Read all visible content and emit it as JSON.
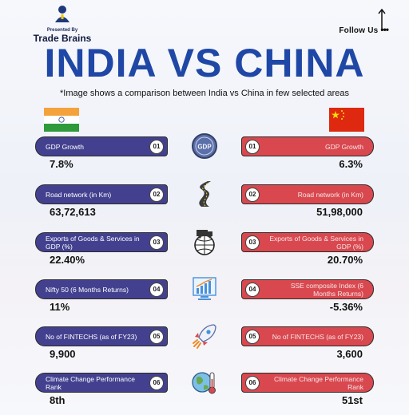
{
  "header": {
    "presented_by": "Presented By",
    "brand": "Trade Brains",
    "follow": "Follow Us",
    "follow_dots": "•••"
  },
  "title": "INDIA VS CHINA",
  "subtitle": "*Image shows a comparison between India vs China in few selected areas",
  "colors": {
    "title": "#1f47a6",
    "india_pill": "#43418f",
    "china_pill": "#d9484f"
  },
  "rows": [
    {
      "num": "01",
      "india_label": "GDP Growth",
      "china_label": "GDP Growth",
      "india_value": "7.8%",
      "china_value": "6.3%",
      "icon": "gdp-coin-icon"
    },
    {
      "num": "02",
      "india_label": "Road network (in Km)",
      "china_label": "Road network (in Km)",
      "india_value": "63,72,613",
      "china_value": "51,98,000",
      "icon": "road-icon"
    },
    {
      "num": "03",
      "india_label": "Exports of Goods & Services in GDP (%)",
      "china_label": "Exports of Goods & Services in GDP (%)",
      "india_value": "22.40%",
      "china_value": "20.70%",
      "icon": "globe-truck-icon"
    },
    {
      "num": "04",
      "india_label": "Nifty 50 (6 Months Returns)",
      "china_label": "SSE composite Index (6 Months Returns)",
      "india_value": "11%",
      "china_value": "-5.36%",
      "icon": "stock-chart-icon"
    },
    {
      "num": "05",
      "india_label": "No of FINTECHS (as of FY23)",
      "china_label": "No of FINTECHS (as of FY23)",
      "india_value": "9,900",
      "china_value": "3,600",
      "icon": "rocket-icon"
    },
    {
      "num": "06",
      "india_label": "Climate Change Performance Rank",
      "china_label": "Climate Change Performance Rank",
      "india_value": "8th",
      "china_value": "51st",
      "icon": "earth-thermometer-icon"
    }
  ]
}
